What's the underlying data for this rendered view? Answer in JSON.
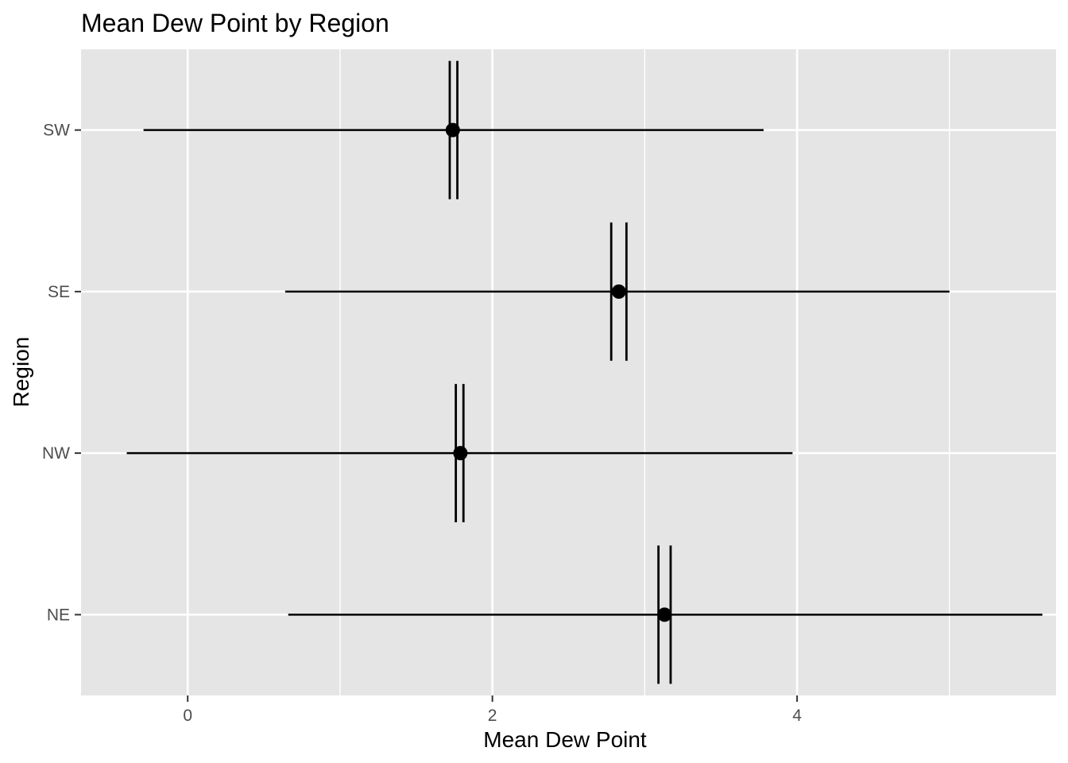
{
  "chart_data": {
    "type": "scatter",
    "title": "Mean Dew Point by Region",
    "xlabel": "Mean Dew Point",
    "ylabel": "Region",
    "categories": [
      "NE",
      "NW",
      "SE",
      "SW"
    ],
    "points": [
      {
        "category": "NE",
        "mean": 3.13,
        "lower": 0.66,
        "upper": 5.61,
        "ci_lower": 3.09,
        "ci_upper": 3.17
      },
      {
        "category": "NW",
        "mean": 1.79,
        "lower": -0.4,
        "upper": 3.97,
        "ci_lower": 1.76,
        "ci_upper": 1.81
      },
      {
        "category": "SE",
        "mean": 2.83,
        "lower": 0.64,
        "upper": 5.0,
        "ci_lower": 2.78,
        "ci_upper": 2.88
      },
      {
        "category": "SW",
        "mean": 1.74,
        "lower": -0.29,
        "upper": 3.78,
        "ci_lower": 1.72,
        "ci_upper": 1.77
      }
    ],
    "x_ticks": [
      0,
      2,
      4
    ],
    "x_minor_ticks": [
      1,
      3,
      5
    ],
    "xlim": [
      -0.7,
      5.7
    ],
    "grid": true,
    "colors": {
      "panel_background": "#e5e5e5",
      "grid": "#ffffff",
      "marks": "#000000",
      "tick_text": "#4d4d4d",
      "tick_mark": "#333333"
    }
  }
}
